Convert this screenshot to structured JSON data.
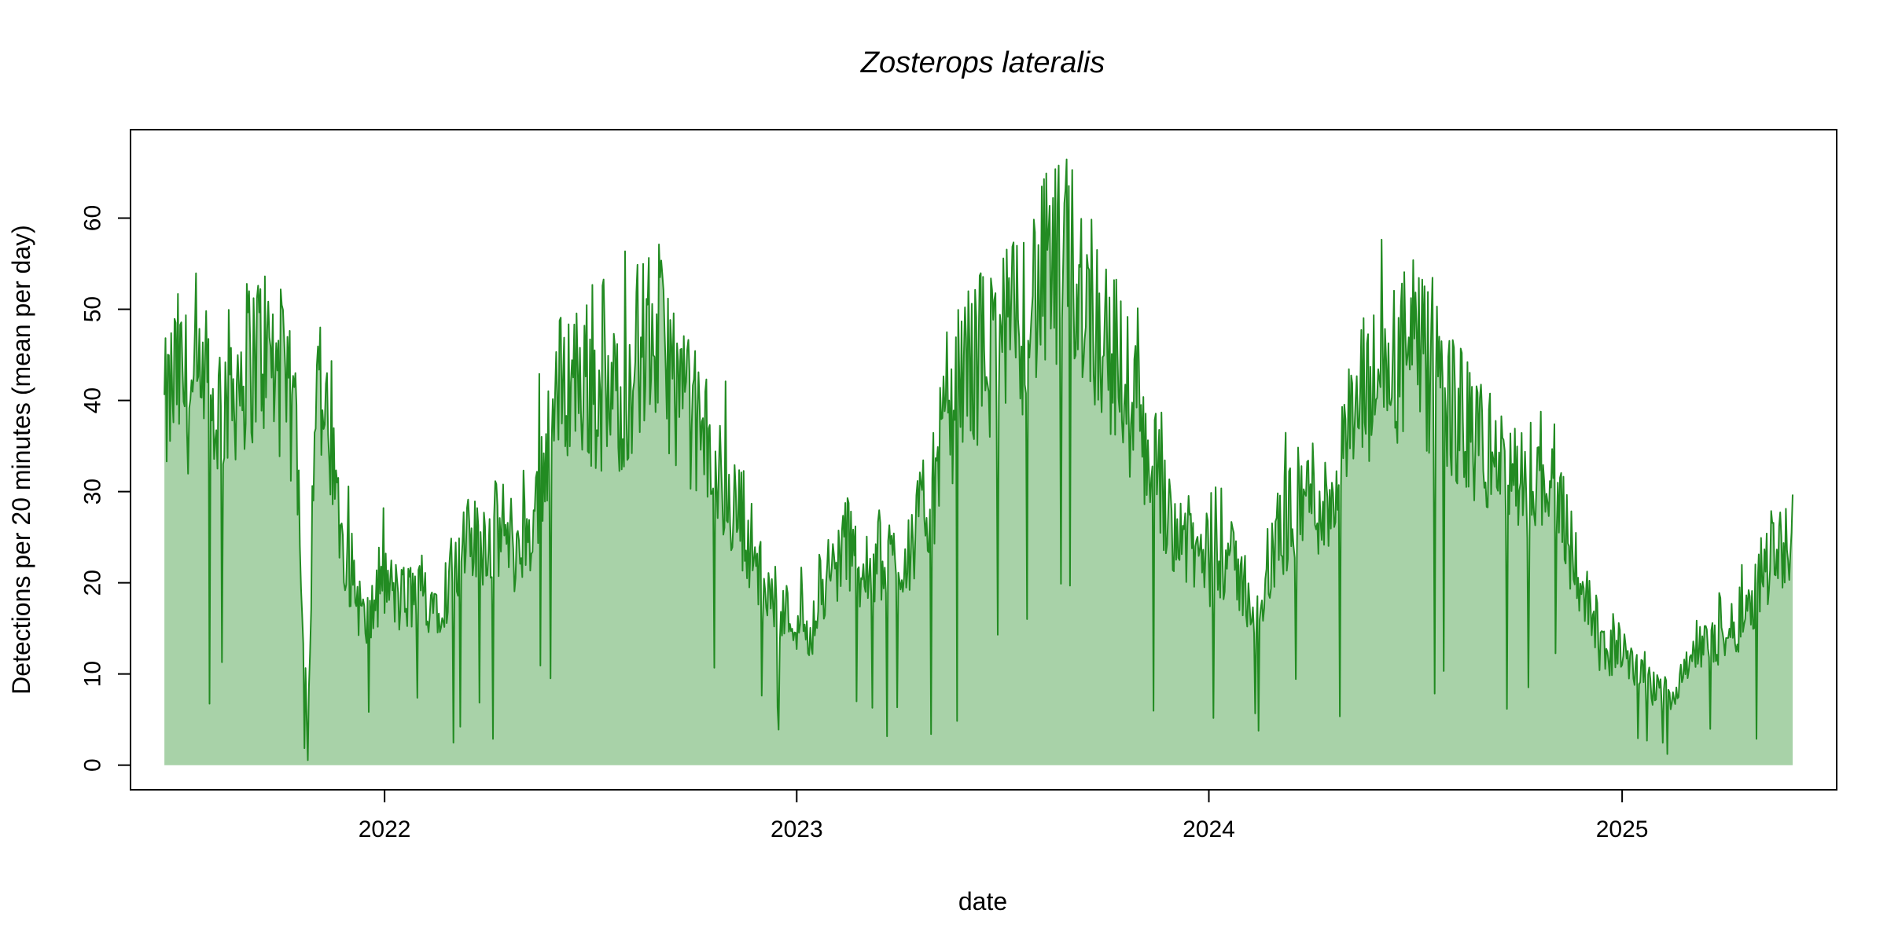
{
  "chart_data": {
    "type": "area",
    "title": "Zosterops lateralis",
    "xlabel": "date",
    "ylabel": "Detections per 20 minutes (mean per day)",
    "x_range": [
      "2021-06-20",
      "2025-06-01"
    ],
    "xlim": [
      "2021-05-21",
      "2025-07-10"
    ],
    "ylim": [
      -2.7,
      69.7
    ],
    "x_ticks": [
      "2022-01-01",
      "2023-01-01",
      "2024-01-01",
      "2025-01-01"
    ],
    "x_tick_labels": [
      "2022",
      "2023",
      "2024",
      "2025"
    ],
    "y_ticks": [
      0,
      10,
      20,
      30,
      40,
      50,
      60
    ],
    "grid": false,
    "legend": "none",
    "line_color": "#228B22",
    "fill_color": "#A8D2A8",
    "series": [
      {
        "x": [
          "2021-06-20",
          "2021-07-01",
          "2021-07-15",
          "2021-08-01",
          "2021-08-15",
          "2021-09-01",
          "2021-09-15",
          "2021-10-01",
          "2021-10-15",
          "2021-10-25",
          "2021-11-01",
          "2021-11-15",
          "2021-12-01",
          "2021-12-15",
          "2022-01-01",
          "2022-01-15",
          "2022-02-01",
          "2022-02-15",
          "2022-03-01",
          "2022-03-15",
          "2022-04-01",
          "2022-04-15",
          "2022-05-01",
          "2022-05-15",
          "2022-06-01",
          "2022-06-15",
          "2022-07-01",
          "2022-07-15",
          "2022-08-01",
          "2022-08-15",
          "2022-09-01",
          "2022-09-15",
          "2022-10-01",
          "2022-10-15",
          "2022-11-01",
          "2022-11-15",
          "2022-12-01",
          "2022-12-15",
          "2023-01-01",
          "2023-01-15",
          "2023-02-01",
          "2023-02-15",
          "2023-03-01",
          "2023-03-15",
          "2023-04-01",
          "2023-04-15",
          "2023-05-01",
          "2023-05-15",
          "2023-06-01",
          "2023-06-15",
          "2023-07-01",
          "2023-07-15",
          "2023-08-01",
          "2023-08-15",
          "2023-09-01",
          "2023-09-15",
          "2023-10-01",
          "2023-10-15",
          "2023-11-01",
          "2023-11-15",
          "2023-12-01",
          "2023-12-15",
          "2024-01-01",
          "2024-01-15",
          "2024-02-01",
          "2024-02-15",
          "2024-03-01",
          "2024-03-15",
          "2024-04-01",
          "2024-04-15",
          "2024-05-01",
          "2024-05-15",
          "2024-06-01",
          "2024-06-15",
          "2024-07-01",
          "2024-07-15",
          "2024-08-01",
          "2024-08-15",
          "2024-09-01",
          "2024-09-15",
          "2024-10-01",
          "2024-10-15",
          "2024-11-01",
          "2024-11-15",
          "2024-12-01",
          "2024-12-15",
          "2025-01-01",
          "2025-01-15",
          "2025-02-01",
          "2025-02-15",
          "2025-03-01",
          "2025-03-15",
          "2025-04-01",
          "2025-04-15",
          "2025-05-01",
          "2025-05-15",
          "2025-06-01"
        ],
        "y": [
          38,
          43,
          40,
          38,
          41,
          44,
          46,
          42,
          37,
          3,
          45,
          32,
          22,
          15,
          20,
          18,
          19,
          18,
          20,
          24,
          25,
          26,
          23,
          28,
          40,
          43,
          42,
          39,
          41,
          46,
          47,
          42,
          38,
          34,
          29,
          27,
          20,
          17,
          16,
          15,
          21,
          25,
          20,
          23,
          22,
          25,
          30,
          38,
          44,
          45,
          46,
          48,
          52,
          54,
          55,
          52,
          47,
          43,
          37,
          32,
          27,
          24,
          22,
          23,
          20,
          15,
          25,
          28,
          30,
          28,
          35,
          40,
          42,
          44,
          46,
          42,
          40,
          37,
          35,
          33,
          30,
          32,
          33,
          25,
          18,
          12,
          13,
          10,
          8,
          8,
          12,
          13,
          14,
          16,
          20,
          24,
          25
        ]
      }
    ]
  }
}
